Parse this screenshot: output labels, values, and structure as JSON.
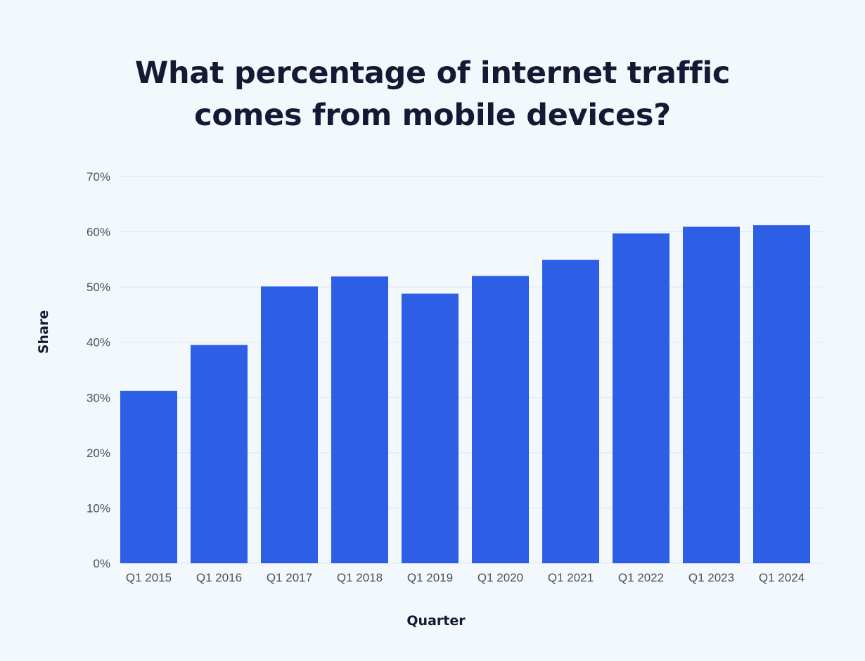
{
  "chart_data": {
    "type": "bar",
    "title": "What percentage of internet traffic comes from mobile devices?",
    "title_lines": [
      "What percentage of internet traffic",
      "comes from mobile devices?"
    ],
    "xlabel": "Quarter",
    "ylabel": "Share",
    "categories": [
      "Q1 2015",
      "Q1 2016",
      "Q1 2017",
      "Q1 2018",
      "Q1 2019",
      "Q1 2020",
      "Q1 2021",
      "Q1 2022",
      "Q1 2023",
      "Q1 2024"
    ],
    "values": [
      31.2,
      39.5,
      50.1,
      51.9,
      48.8,
      52.0,
      54.9,
      59.7,
      60.9,
      61.2
    ],
    "ylim": [
      0,
      70
    ],
    "yticks": [
      0,
      10,
      20,
      30,
      40,
      50,
      60,
      70
    ],
    "ytick_labels": [
      "0%",
      "10%",
      "20%",
      "30%",
      "40%",
      "50%",
      "60%",
      "70%"
    ],
    "grid": true,
    "legend": "none",
    "colors": {
      "bar": "#2d5ee6",
      "grid": "#dde6f0",
      "background": "#f3f8fd"
    }
  }
}
